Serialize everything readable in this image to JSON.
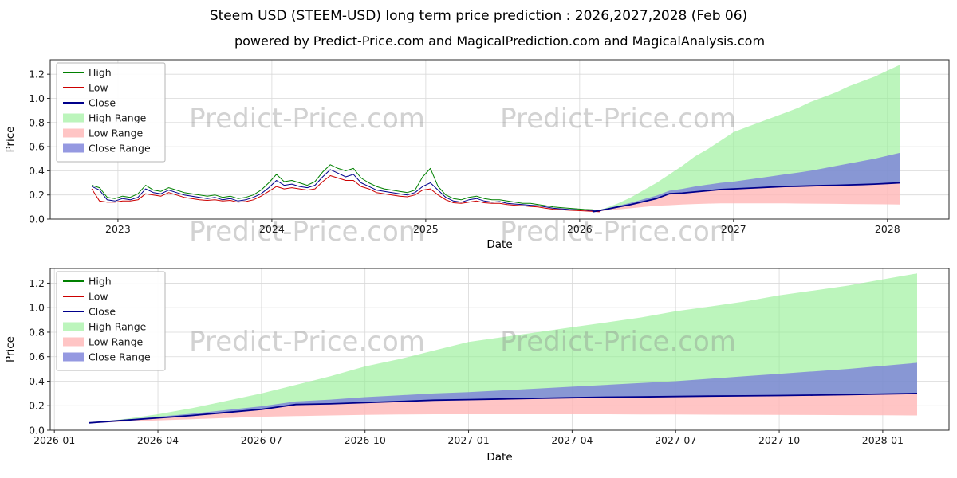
{
  "figure": {
    "title": "Steem USD (STEEM-USD) long term price prediction : 2026,2027,2028 (Feb 06)",
    "subtitle": "powered by Predict-Price.com and MagicalPrediction.com and MagicalAnalysis.com",
    "watermark": "Predict-Price.com",
    "background": "#ffffff"
  },
  "colors": {
    "high_line": "#008000",
    "low_line": "#cc0000",
    "close_line": "#00008b",
    "high_range_fill": "#90ee90",
    "low_range_fill": "#ffb6b6",
    "close_range_fill": "#7b7fd9",
    "grid": "#d9d9d9",
    "spine": "#2b2b2b",
    "tick_text": "#1a1a1a",
    "watermark_gray": "#8a8a8a"
  },
  "chart_data": {
    "type": "line",
    "watermark": "Predict-Price.com",
    "legend": [
      {
        "label": "High",
        "type": "line",
        "color": "#008000"
      },
      {
        "label": "Low",
        "type": "line",
        "color": "#cc0000"
      },
      {
        "label": "Close",
        "type": "line",
        "color": "#00008b"
      },
      {
        "label": "High Range",
        "type": "patch",
        "color": "#90ee90",
        "opacity": 0.6
      },
      {
        "label": "Low Range",
        "type": "patch",
        "color": "#ffb6b6",
        "opacity": 0.8
      },
      {
        "label": "Close Range",
        "type": "patch",
        "color": "#7b7fd9",
        "opacity": 0.8
      }
    ],
    "series": {
      "historical": {
        "x_start": 2022.83,
        "x_step": 0.05,
        "close": [
          0.27,
          0.24,
          0.16,
          0.15,
          0.17,
          0.16,
          0.18,
          0.25,
          0.22,
          0.21,
          0.24,
          0.22,
          0.2,
          0.19,
          0.18,
          0.17,
          0.18,
          0.16,
          0.17,
          0.15,
          0.16,
          0.18,
          0.21,
          0.26,
          0.32,
          0.28,
          0.29,
          0.27,
          0.26,
          0.28,
          0.35,
          0.41,
          0.38,
          0.35,
          0.37,
          0.3,
          0.27,
          0.24,
          0.23,
          0.22,
          0.21,
          0.2,
          0.22,
          0.27,
          0.3,
          0.24,
          0.18,
          0.15,
          0.14,
          0.16,
          0.17,
          0.15,
          0.14,
          0.145,
          0.13,
          0.125,
          0.12,
          0.115,
          0.11,
          0.1,
          0.09,
          0.085,
          0.08,
          0.078,
          0.075,
          0.07,
          0.065
        ],
        "high": [
          0.28,
          0.26,
          0.18,
          0.17,
          0.19,
          0.18,
          0.21,
          0.28,
          0.24,
          0.23,
          0.26,
          0.24,
          0.22,
          0.21,
          0.2,
          0.19,
          0.2,
          0.18,
          0.19,
          0.17,
          0.18,
          0.2,
          0.24,
          0.3,
          0.37,
          0.31,
          0.32,
          0.3,
          0.28,
          0.31,
          0.39,
          0.45,
          0.42,
          0.4,
          0.42,
          0.34,
          0.3,
          0.27,
          0.25,
          0.24,
          0.23,
          0.22,
          0.24,
          0.35,
          0.42,
          0.27,
          0.2,
          0.17,
          0.16,
          0.18,
          0.19,
          0.17,
          0.16,
          0.16,
          0.15,
          0.14,
          0.13,
          0.13,
          0.12,
          0.11,
          0.1,
          0.095,
          0.09,
          0.085,
          0.08,
          0.078,
          0.07
        ],
        "low": [
          0.25,
          0.15,
          0.14,
          0.14,
          0.15,
          0.15,
          0.16,
          0.21,
          0.2,
          0.19,
          0.22,
          0.2,
          0.18,
          0.17,
          0.16,
          0.155,
          0.16,
          0.15,
          0.155,
          0.14,
          0.145,
          0.16,
          0.19,
          0.23,
          0.27,
          0.25,
          0.26,
          0.25,
          0.24,
          0.25,
          0.31,
          0.36,
          0.34,
          0.32,
          0.32,
          0.27,
          0.25,
          0.22,
          0.21,
          0.2,
          0.19,
          0.185,
          0.2,
          0.24,
          0.25,
          0.2,
          0.16,
          0.135,
          0.13,
          0.14,
          0.15,
          0.135,
          0.13,
          0.13,
          0.12,
          0.115,
          0.11,
          0.105,
          0.1,
          0.09,
          0.082,
          0.078,
          0.073,
          0.071,
          0.068,
          0.064,
          0.06
        ]
      },
      "prediction": {
        "x_start": 2026.083,
        "x_step": 0.083333,
        "close": [
          0.06,
          0.08,
          0.1,
          0.12,
          0.145,
          0.17,
          0.21,
          0.215,
          0.225,
          0.235,
          0.245,
          0.25,
          0.255,
          0.26,
          0.265,
          0.27,
          0.272,
          0.275,
          0.278,
          0.28,
          0.283,
          0.286,
          0.29,
          0.295,
          0.3
        ],
        "close_upper": [
          0.06,
          0.085,
          0.11,
          0.135,
          0.165,
          0.195,
          0.235,
          0.25,
          0.27,
          0.285,
          0.3,
          0.31,
          0.325,
          0.34,
          0.355,
          0.37,
          0.385,
          0.4,
          0.42,
          0.44,
          0.46,
          0.48,
          0.5,
          0.525,
          0.55
        ],
        "low_lower": [
          0.055,
          0.07,
          0.08,
          0.09,
          0.1,
          0.11,
          0.115,
          0.12,
          0.125,
          0.128,
          0.13,
          0.13,
          0.13,
          0.13,
          0.13,
          0.13,
          0.129,
          0.128,
          0.127,
          0.126,
          0.125,
          0.124,
          0.123,
          0.122,
          0.12
        ],
        "high_upper": [
          0.06,
          0.09,
          0.13,
          0.18,
          0.24,
          0.3,
          0.37,
          0.44,
          0.52,
          0.58,
          0.65,
          0.72,
          0.76,
          0.8,
          0.84,
          0.88,
          0.92,
          0.97,
          1.01,
          1.05,
          1.1,
          1.14,
          1.18,
          1.23,
          1.28
        ]
      }
    },
    "bands": [
      {
        "name": "high-range-band",
        "lower": "close",
        "upper": "high_upper",
        "color": "#90ee90",
        "opacity": 0.6
      },
      {
        "name": "low-range-band",
        "lower": "low_lower",
        "upper": "close",
        "color": "#ffb6b6",
        "opacity": 0.8
      },
      {
        "name": "close-range-band",
        "lower": "close",
        "upper": "close_upper",
        "color": "#7b7fd9",
        "opacity": 0.8
      }
    ],
    "charts": [
      {
        "xlabel": "Date",
        "ylabel": "Price",
        "xlim": [
          2022.56,
          2028.4
        ],
        "ylim": [
          0.0,
          1.32
        ],
        "xticks": [
          {
            "v": 2023,
            "label": "2023"
          },
          {
            "v": 2024,
            "label": "2024"
          },
          {
            "v": 2025,
            "label": "2025"
          },
          {
            "v": 2026,
            "label": "2026"
          },
          {
            "v": 2027,
            "label": "2027"
          },
          {
            "v": 2028,
            "label": "2028"
          }
        ],
        "yticks": [
          {
            "v": 0.0,
            "label": "0.0"
          },
          {
            "v": 0.2,
            "label": "0.2"
          },
          {
            "v": 0.4,
            "label": "0.4"
          },
          {
            "v": 0.6,
            "label": "0.6"
          },
          {
            "v": 0.8,
            "label": "0.8"
          },
          {
            "v": 1.0,
            "label": "1.0"
          },
          {
            "v": 1.2,
            "label": "1.2"
          }
        ],
        "lines": [
          {
            "src": "historical",
            "key": "close",
            "color": "#00008b",
            "width": 1.0,
            "name": "close-line-historical"
          },
          {
            "src": "historical",
            "key": "high",
            "color": "#008000",
            "width": 1.0,
            "name": "high-line-historical"
          },
          {
            "src": "historical",
            "key": "low",
            "color": "#cc0000",
            "width": 1.0,
            "name": "low-line-historical"
          },
          {
            "src": "prediction",
            "key": "close",
            "color": "#00008b",
            "width": 1.8,
            "name": "close-line-prediction"
          }
        ]
      },
      {
        "xlabel": "Date",
        "ylabel": "Price",
        "xlim": [
          2025.99,
          2028.16
        ],
        "ylim": [
          0.0,
          1.32
        ],
        "xticks": [
          {
            "v": 2026.0,
            "label": "2026-01"
          },
          {
            "v": 2026.25,
            "label": "2026-04"
          },
          {
            "v": 2026.5,
            "label": "2026-07"
          },
          {
            "v": 2026.75,
            "label": "2026-10"
          },
          {
            "v": 2027.0,
            "label": "2027-01"
          },
          {
            "v": 2027.25,
            "label": "2027-04"
          },
          {
            "v": 2027.5,
            "label": "2027-07"
          },
          {
            "v": 2027.75,
            "label": "2027-10"
          },
          {
            "v": 2028.0,
            "label": "2028-01"
          }
        ],
        "yticks": [
          {
            "v": 0.0,
            "label": "0.0"
          },
          {
            "v": 0.2,
            "label": "0.2"
          },
          {
            "v": 0.4,
            "label": "0.4"
          },
          {
            "v": 0.6,
            "label": "0.6"
          },
          {
            "v": 0.8,
            "label": "0.8"
          },
          {
            "v": 1.0,
            "label": "1.0"
          },
          {
            "v": 1.2,
            "label": "1.2"
          }
        ],
        "lines": [
          {
            "src": "prediction",
            "key": "close",
            "color": "#00008b",
            "width": 1.8,
            "name": "close-line-prediction"
          }
        ]
      }
    ]
  }
}
